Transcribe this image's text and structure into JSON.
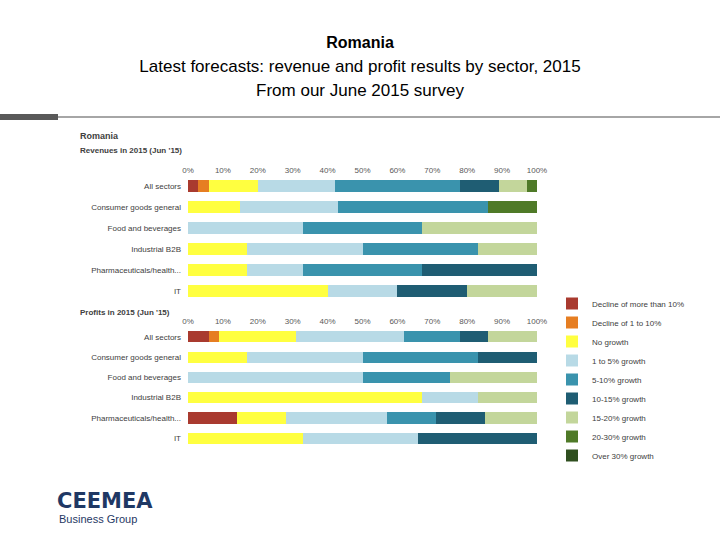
{
  "title": [
    "Romania",
    "Latest forecasts: revenue and profit results by sector, 2015",
    "From our June 2015 survey"
  ],
  "chart_heading": "Romania",
  "logo": {
    "name": "CEEMEA",
    "tagline": "Business Group"
  },
  "chart_data": [
    {
      "type": "bar",
      "orientation": "horizontal",
      "stacked": true,
      "grid": false,
      "legend": "right",
      "title": "Revenues in 2015 (Jun '15)",
      "categories": [
        "All sectors",
        "Consumer goods general",
        "Food and beverages",
        "Industrial B2B",
        "Pharmaceuticals/health...",
        "IT"
      ],
      "xlim": [
        0,
        100
      ],
      "xticks": [
        {
          "value": 0,
          "label": "0%"
        },
        {
          "value": 10,
          "label": "10%"
        },
        {
          "value": 20,
          "label": "20%"
        },
        {
          "value": 30,
          "label": "30%"
        },
        {
          "value": 40,
          "label": "40%"
        },
        {
          "value": 50,
          "label": "50%"
        },
        {
          "value": 60,
          "label": "60%"
        },
        {
          "value": 70,
          "label": "70%"
        },
        {
          "value": 80,
          "label": "80%"
        },
        {
          "value": 90,
          "label": "90%"
        },
        {
          "value": 100,
          "label": "100%"
        }
      ],
      "series": [
        {
          "name": "Decline of more than 10%",
          "color": "#a93a2f",
          "values": [
            3,
            0,
            0,
            0,
            0,
            0
          ]
        },
        {
          "name": "Decline of 1 to 10%",
          "color": "#e67e22",
          "values": [
            3,
            0,
            0,
            0,
            0,
            0
          ]
        },
        {
          "name": "No growth",
          "color": "#ffff40",
          "values": [
            14,
            15,
            0,
            17,
            17,
            40
          ]
        },
        {
          "name": "1 to 5% growth",
          "color": "#b8dae6",
          "values": [
            22,
            28,
            33,
            33,
            16,
            20
          ]
        },
        {
          "name": "5-10% growth",
          "color": "#3a93ad",
          "values": [
            36,
            43,
            34,
            33,
            34,
            0
          ]
        },
        {
          "name": "10-15% growth",
          "color": "#1f5d73",
          "values": [
            11,
            0,
            0,
            0,
            33,
            20
          ]
        },
        {
          "name": "15-20% growth",
          "color": "#c3d69b",
          "values": [
            8,
            0,
            33,
            17,
            0,
            20
          ]
        },
        {
          "name": "20-30% growth",
          "color": "#4f7a28",
          "values": [
            3,
            14,
            0,
            0,
            0,
            0
          ]
        },
        {
          "name": "Over 30% growth",
          "color": "#2f4f1f",
          "values": [
            0,
            0,
            0,
            0,
            0,
            0
          ]
        }
      ]
    },
    {
      "type": "bar",
      "orientation": "horizontal",
      "stacked": true,
      "grid": false,
      "title": "Profits in 2015 (Jun '15)",
      "categories": [
        "All sectors",
        "Consumer goods general",
        "Food and beverages",
        "Industrial B2B",
        "Pharmaceuticals/health...",
        "IT"
      ],
      "xlim": [
        0,
        100
      ],
      "xticks": [
        {
          "value": 0,
          "label": "0%"
        },
        {
          "value": 10,
          "label": "10%"
        },
        {
          "value": 20,
          "label": "20%"
        },
        {
          "value": 30,
          "label": "30%"
        },
        {
          "value": 40,
          "label": "40%"
        },
        {
          "value": 50,
          "label": "50%"
        },
        {
          "value": 60,
          "label": "60%"
        },
        {
          "value": 70,
          "label": "70%"
        },
        {
          "value": 80,
          "label": "80%"
        },
        {
          "value": 90,
          "label": "90%"
        },
        {
          "value": 100,
          "label": "100%"
        }
      ],
      "series": [
        {
          "name": "Decline of more than 10%",
          "color": "#a93a2f",
          "values": [
            6,
            0,
            0,
            0,
            14,
            0
          ]
        },
        {
          "name": "Decline of 1 to 10%",
          "color": "#e67e22",
          "values": [
            3,
            0,
            0,
            0,
            0,
            0
          ]
        },
        {
          "name": "No growth",
          "color": "#ffff40",
          "values": [
            22,
            17,
            0,
            67,
            14,
            33
          ]
        },
        {
          "name": "1 to 5% growth",
          "color": "#b8dae6",
          "values": [
            31,
            33,
            50,
            16,
            29,
            33
          ]
        },
        {
          "name": "5-10% growth",
          "color": "#3a93ad",
          "values": [
            16,
            33,
            25,
            0,
            14,
            0
          ]
        },
        {
          "name": "10-15% growth",
          "color": "#1f5d73",
          "values": [
            8,
            17,
            0,
            0,
            14,
            34
          ]
        },
        {
          "name": "15-20% growth",
          "color": "#c3d69b",
          "values": [
            14,
            0,
            25,
            17,
            15,
            0
          ]
        },
        {
          "name": "20-30% growth",
          "color": "#4f7a28",
          "values": [
            0,
            0,
            0,
            0,
            0,
            0
          ]
        },
        {
          "name": "Over 30% growth",
          "color": "#2f4f1f",
          "values": [
            0,
            0,
            0,
            0,
            0,
            0
          ]
        }
      ]
    }
  ]
}
